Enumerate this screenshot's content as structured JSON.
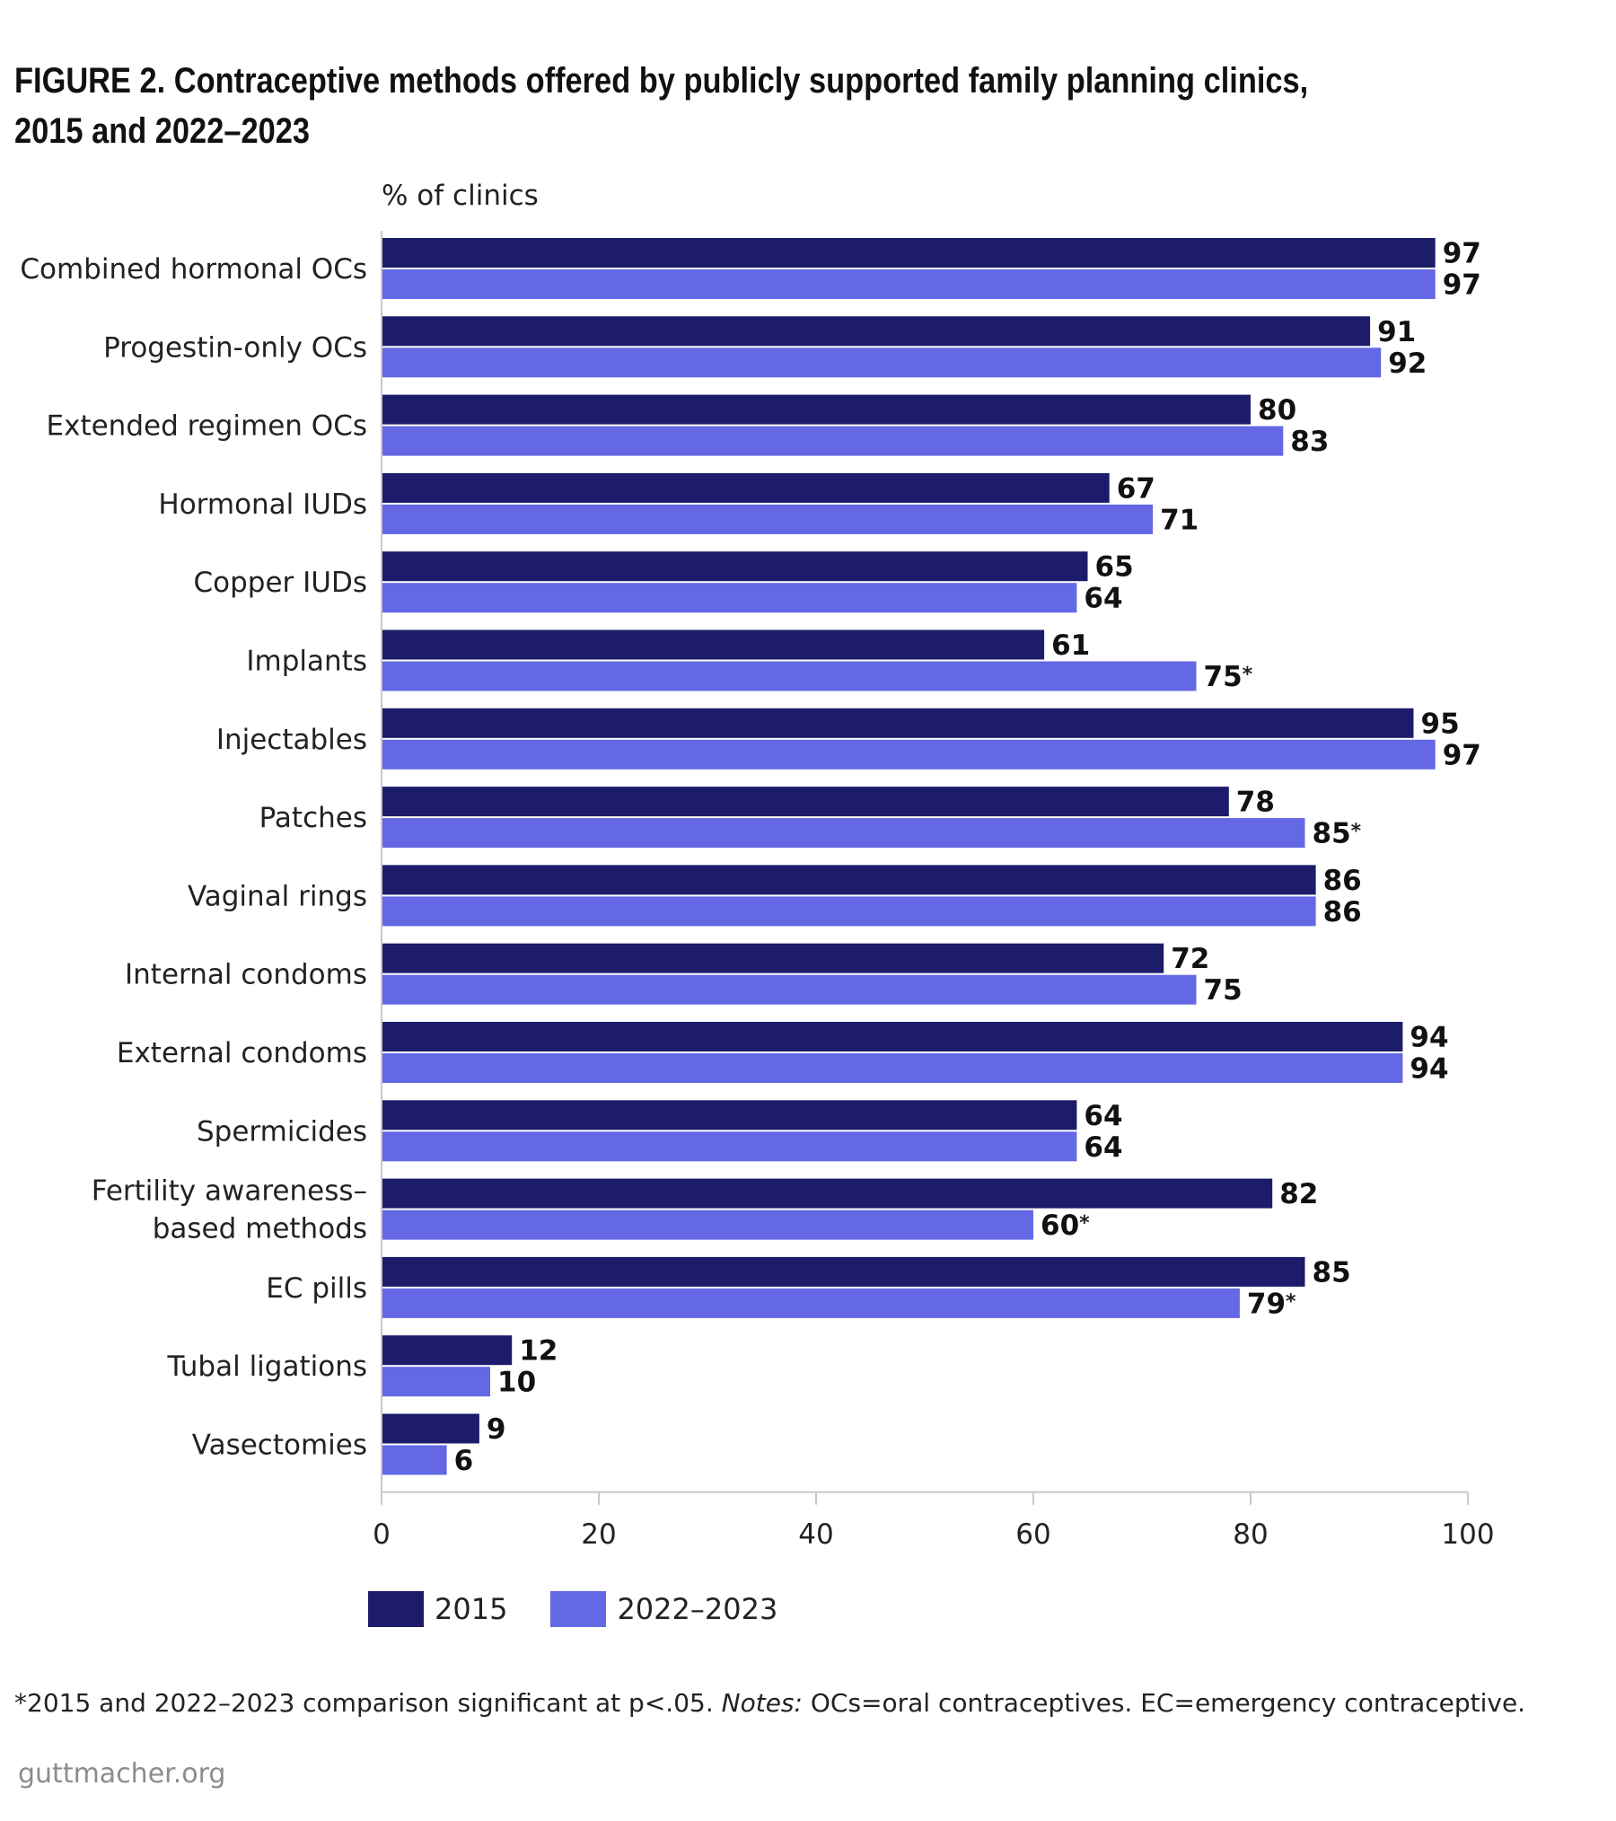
{
  "title": "FIGURE 2. Contraceptive methods offered by publicly supported family planning clinics, 2015 and 2022–2023",
  "colors": {
    "series_2015": "#1c1c6b",
    "series_2022": "#6468e4",
    "axis": "#c8c8c8"
  },
  "chart_data": {
    "type": "bar",
    "orientation": "horizontal",
    "ylabel": "% of clinics",
    "xlim": [
      0,
      100
    ],
    "x_ticks": [
      "0",
      "20",
      "40",
      "60",
      "80",
      "100"
    ],
    "categories": [
      "Combined hormonal OCs",
      "Progestin-only OCs",
      "Extended regimen OCs",
      "Hormonal IUDs",
      "Copper IUDs",
      "Implants",
      "Injectables",
      "Patches",
      "Vaginal rings",
      "Internal condoms",
      "External condoms",
      "Spermicides",
      "Fertility awareness–\nbased methods",
      "EC pills",
      "Tubal ligations",
      "Vasectomies"
    ],
    "series": [
      {
        "name": "2015",
        "values": [
          97,
          91,
          80,
          67,
          65,
          61,
          95,
          78,
          86,
          72,
          94,
          64,
          82,
          85,
          12,
          9
        ]
      },
      {
        "name": "2022–2023",
        "values": [
          97,
          92,
          83,
          71,
          64,
          75,
          97,
          85,
          86,
          75,
          94,
          64,
          60,
          79,
          10,
          6
        ],
        "significant": [
          false,
          false,
          false,
          false,
          false,
          true,
          false,
          true,
          false,
          false,
          false,
          false,
          true,
          true,
          false,
          false
        ]
      }
    ],
    "significance_marker": "*",
    "grid": false,
    "legend_position": "bottom-left"
  },
  "legend": {
    "item_1": "2015",
    "item_2": "2022–2023"
  },
  "footnote": {
    "part_1": "*2015 and 2022–2023 comparison significant at p<.05.",
    "notes_label": "Notes:",
    "part_2": "OCs=oral contraceptives. EC=emergency contraceptive."
  },
  "source": "guttmacher.org"
}
